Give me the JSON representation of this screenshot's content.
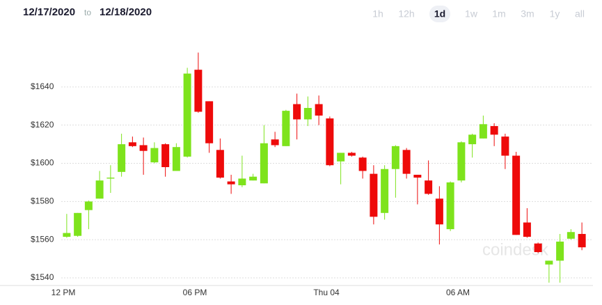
{
  "header": {
    "from": "12/17/2020",
    "separator": "to",
    "to": "12/18/2020",
    "ranges": [
      {
        "label": "1h"
      },
      {
        "label": "12h"
      },
      {
        "label": "1d",
        "active": true
      },
      {
        "label": "1w"
      },
      {
        "label": "1m"
      },
      {
        "label": "3m"
      },
      {
        "label": "1y"
      },
      {
        "label": "all"
      }
    ]
  },
  "watermark": "coindesk",
  "chart_data": {
    "type": "candlestick",
    "categories": [
      "12 PM",
      null,
      null,
      null,
      null,
      null,
      null,
      null,
      null,
      null,
      null,
      null,
      "06 PM",
      null,
      null,
      null,
      null,
      null,
      null,
      null,
      null,
      null,
      null,
      null,
      "Thu 04",
      null,
      null,
      null,
      null,
      null,
      null,
      null,
      null,
      null,
      null,
      null,
      "06 AM",
      null,
      null,
      null,
      null,
      null,
      null,
      null,
      null,
      null,
      null,
      null
    ],
    "open": [
      1561.5,
      1562,
      1575.5,
      1581.5,
      1592,
      1595.5,
      1611,
      1609.5,
      1600.5,
      1610,
      1596,
      1603.5,
      1649,
      1632.5,
      1607,
      1590.5,
      1588.5,
      1591,
      1589.5,
      1612.5,
      1609,
      1631,
      1623,
      1631,
      1623.5,
      1601,
      1605.5,
      1603,
      1594.5,
      1574,
      1597,
      1607,
      1594,
      1591,
      1581.5,
      1565.5,
      1591,
      1610,
      1613,
      1619.5,
      1614,
      1604,
      1569,
      1558,
      1547,
      1549,
      1560.5,
      1563
    ],
    "high": [
      1573.5,
      1574,
      1580.5,
      1596,
      1599,
      1615.5,
      1614,
      1613.5,
      1611,
      1610.5,
      1610.5,
      1650,
      1658,
      1632.5,
      1613,
      1594,
      1604,
      1594.5,
      1620,
      1616.5,
      1628,
      1636.5,
      1635,
      1635.5,
      1624.5,
      1605.5,
      1606,
      1603.5,
      1599,
      1599,
      1609.5,
      1608,
      1594,
      1601.5,
      1588,
      1590.5,
      1611.5,
      1615.5,
      1625,
      1621,
      1615.5,
      1606,
      1576.5,
      1558.5,
      1549,
      1563,
      1565.5,
      1569
    ],
    "low": [
      1561,
      1561.5,
      1565.5,
      1581.5,
      1584.5,
      1593,
      1608.5,
      1594,
      1600,
      1593,
      1596,
      1603,
      1626.5,
      1605.5,
      1592,
      1584,
      1587.5,
      1591,
      1589.5,
      1608.5,
      1609,
      1612.5,
      1619.5,
      1620,
      1598.5,
      1589,
      1603.5,
      1592,
      1568,
      1570.5,
      1582,
      1592,
      1578.5,
      1583.5,
      1557.5,
      1564.5,
      1590,
      1603,
      1613,
      1609,
      1597,
      1562.5,
      1561,
      1553,
      1537.5,
      1537.5,
      1560,
      1554.5
    ],
    "close": [
      1563.5,
      1574,
      1580,
      1591,
      1592.5,
      1610,
      1609,
      1606.5,
      1608,
      1598,
      1608.5,
      1647,
      1627,
      1610.5,
      1592.5,
      1589,
      1592,
      1593,
      1610.5,
      1609.5,
      1627.5,
      1623,
      1629,
      1625,
      1599,
      1605.5,
      1604,
      1596,
      1572,
      1597,
      1609,
      1594.5,
      1592.5,
      1584,
      1568,
      1590,
      1611,
      1615,
      1620.5,
      1615,
      1604,
      1562.5,
      1561.5,
      1553.5,
      1549,
      1559,
      1564,
      1556
    ],
    "up_color": "#7ee31c",
    "down_color": "#ee0a0a",
    "ylim": [
      1536,
      1660
    ],
    "yticks": [
      {
        "value": 1540,
        "label": "$1540"
      },
      {
        "value": 1560,
        "label": "$1560"
      },
      {
        "value": 1580,
        "label": "$1580"
      },
      {
        "value": 1600,
        "label": "$1600"
      },
      {
        "value": 1620,
        "label": "$1620"
      },
      {
        "value": 1640,
        "label": "$1640"
      }
    ],
    "grid": true
  }
}
